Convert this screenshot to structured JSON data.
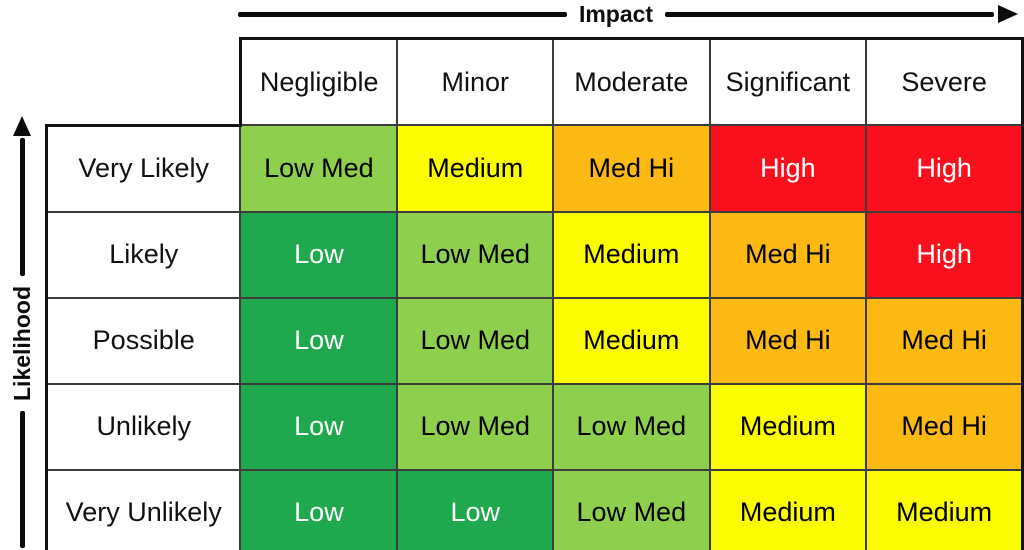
{
  "axes": {
    "impact_label": "Impact",
    "likelihood_label": "Likelihood"
  },
  "matrix": {
    "columns": [
      "Negligible",
      "Minor",
      "Moderate",
      "Significant",
      "Severe"
    ],
    "rows": [
      "Very Likely",
      "Likely",
      "Possible",
      "Unlikely",
      "Very Unlikely"
    ],
    "levels": {
      "low": {
        "label": "Low",
        "bg": "#1FA84D",
        "fg": "#FFFFFF"
      },
      "low-med": {
        "label": "Low Med",
        "bg": "#8ED04E",
        "fg": "#000000"
      },
      "medium": {
        "label": "Medium",
        "bg": "#FCFC00",
        "fg": "#000000"
      },
      "med-hi": {
        "label": "Med Hi",
        "bg": "#FCB813",
        "fg": "#000000"
      },
      "high": {
        "label": "High",
        "bg": "#FA0F1C",
        "fg": "#FFFFFF"
      }
    },
    "cells": [
      [
        {
          "label": "Low Med",
          "level": "low-med"
        },
        {
          "label": "Medium",
          "level": "medium"
        },
        {
          "label": "Med Hi",
          "level": "med-hi"
        },
        {
          "label": "High",
          "level": "high"
        },
        {
          "label": "High",
          "level": "high"
        }
      ],
      [
        {
          "label": "Low",
          "level": "low"
        },
        {
          "label": "Low Med",
          "level": "low-med"
        },
        {
          "label": "Medium",
          "level": "medium"
        },
        {
          "label": "Med Hi",
          "level": "med-hi"
        },
        {
          "label": "High",
          "level": "high"
        }
      ],
      [
        {
          "label": "Low",
          "level": "low"
        },
        {
          "label": "Low Med",
          "level": "low-med"
        },
        {
          "label": "Medium",
          "level": "medium"
        },
        {
          "label": "Med Hi",
          "level": "med-hi"
        },
        {
          "label": "Med Hi",
          "level": "med-hi"
        }
      ],
      [
        {
          "label": "Low",
          "level": "low"
        },
        {
          "label": "Low Med",
          "level": "low-med"
        },
        {
          "label": "Low Med",
          "level": "low-med"
        },
        {
          "label": "Medium",
          "level": "medium"
        },
        {
          "label": "Med Hi",
          "level": "med-hi"
        }
      ],
      [
        {
          "label": "Low",
          "level": "low"
        },
        {
          "label": "Low",
          "level": "low"
        },
        {
          "label": "Low Med",
          "level": "low-med"
        },
        {
          "label": "Medium",
          "level": "medium"
        },
        {
          "label": "Medium",
          "level": "medium"
        }
      ]
    ]
  }
}
